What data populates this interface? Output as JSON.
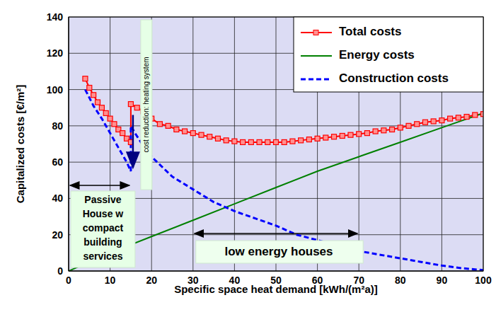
{
  "chart_data": {
    "type": "line",
    "x_label": "Specific space heat demand [kWh/(m²a)]",
    "y_label": "Capitalized costs [€/m²]",
    "xlim": [
      0,
      100
    ],
    "xticks": [
      0,
      10,
      20,
      30,
      40,
      50,
      60,
      70,
      80,
      90,
      100
    ],
    "ylim": [
      0,
      140
    ],
    "yticks": [
      0,
      20,
      40,
      60,
      80,
      100,
      120,
      140
    ],
    "grid": true,
    "legend": "upper right",
    "series": [
      {
        "name": "Total costs",
        "color": "#ff0000",
        "marker": "square",
        "line_style": "solid",
        "x": [
          4,
          5,
          6,
          7,
          8,
          9,
          10,
          11,
          12,
          13,
          14,
          15,
          15,
          16.5,
          18,
          20,
          22,
          24,
          26,
          28,
          30,
          32,
          34,
          36,
          38,
          40,
          42,
          44,
          46,
          48,
          50,
          52,
          54,
          56,
          58,
          60,
          62,
          64,
          66,
          68,
          70,
          72,
          74,
          76,
          78,
          80,
          82,
          84,
          86,
          88,
          90,
          92,
          94,
          96,
          98,
          100
        ],
        "values": [
          106,
          101,
          97,
          93,
          90,
          87,
          84,
          81,
          78,
          76,
          73,
          71,
          92,
          90,
          88,
          84,
          81,
          80,
          78,
          77,
          76,
          75,
          74,
          73,
          72,
          71.5,
          71,
          71,
          71,
          71,
          71,
          71,
          71.5,
          72,
          72.5,
          73,
          73.5,
          74,
          74.5,
          75,
          75.5,
          76,
          77,
          77.5,
          78,
          79,
          80,
          81,
          82,
          82.5,
          83,
          84,
          84.5,
          85,
          86,
          86.5
        ]
      },
      {
        "name": "Energy costs",
        "color": "#008000",
        "line_style": "solid",
        "x": [
          0,
          10,
          20,
          30,
          40,
          50,
          60,
          70,
          80,
          90,
          100
        ],
        "values": [
          0,
          10,
          19,
          28,
          37,
          46,
          55,
          63,
          71,
          79,
          87
        ]
      },
      {
        "name": "Construction costs",
        "color": "#0000ff",
        "line_style": "dashed",
        "x": [
          4,
          6,
          8,
          10,
          12,
          14,
          15,
          15,
          16,
          18,
          20,
          25,
          30,
          35,
          40,
          45,
          50,
          55,
          60,
          65,
          70,
          75,
          80,
          85,
          90,
          95,
          100
        ],
        "values": [
          100,
          91,
          84,
          76,
          68,
          60,
          55,
          80,
          76,
          69,
          63,
          52,
          45,
          38,
          33,
          29,
          25,
          20,
          17,
          14,
          11,
          9,
          7,
          5,
          3,
          1.5,
          0.5
        ]
      }
    ],
    "annotations": [
      {
        "text": "Passive House w compact building services",
        "x": [
          0,
          15
        ]
      },
      {
        "text": "cost reduction: heating system",
        "x": 15
      },
      {
        "text": "low energy houses",
        "x": [
          30,
          70
        ]
      }
    ]
  }
}
